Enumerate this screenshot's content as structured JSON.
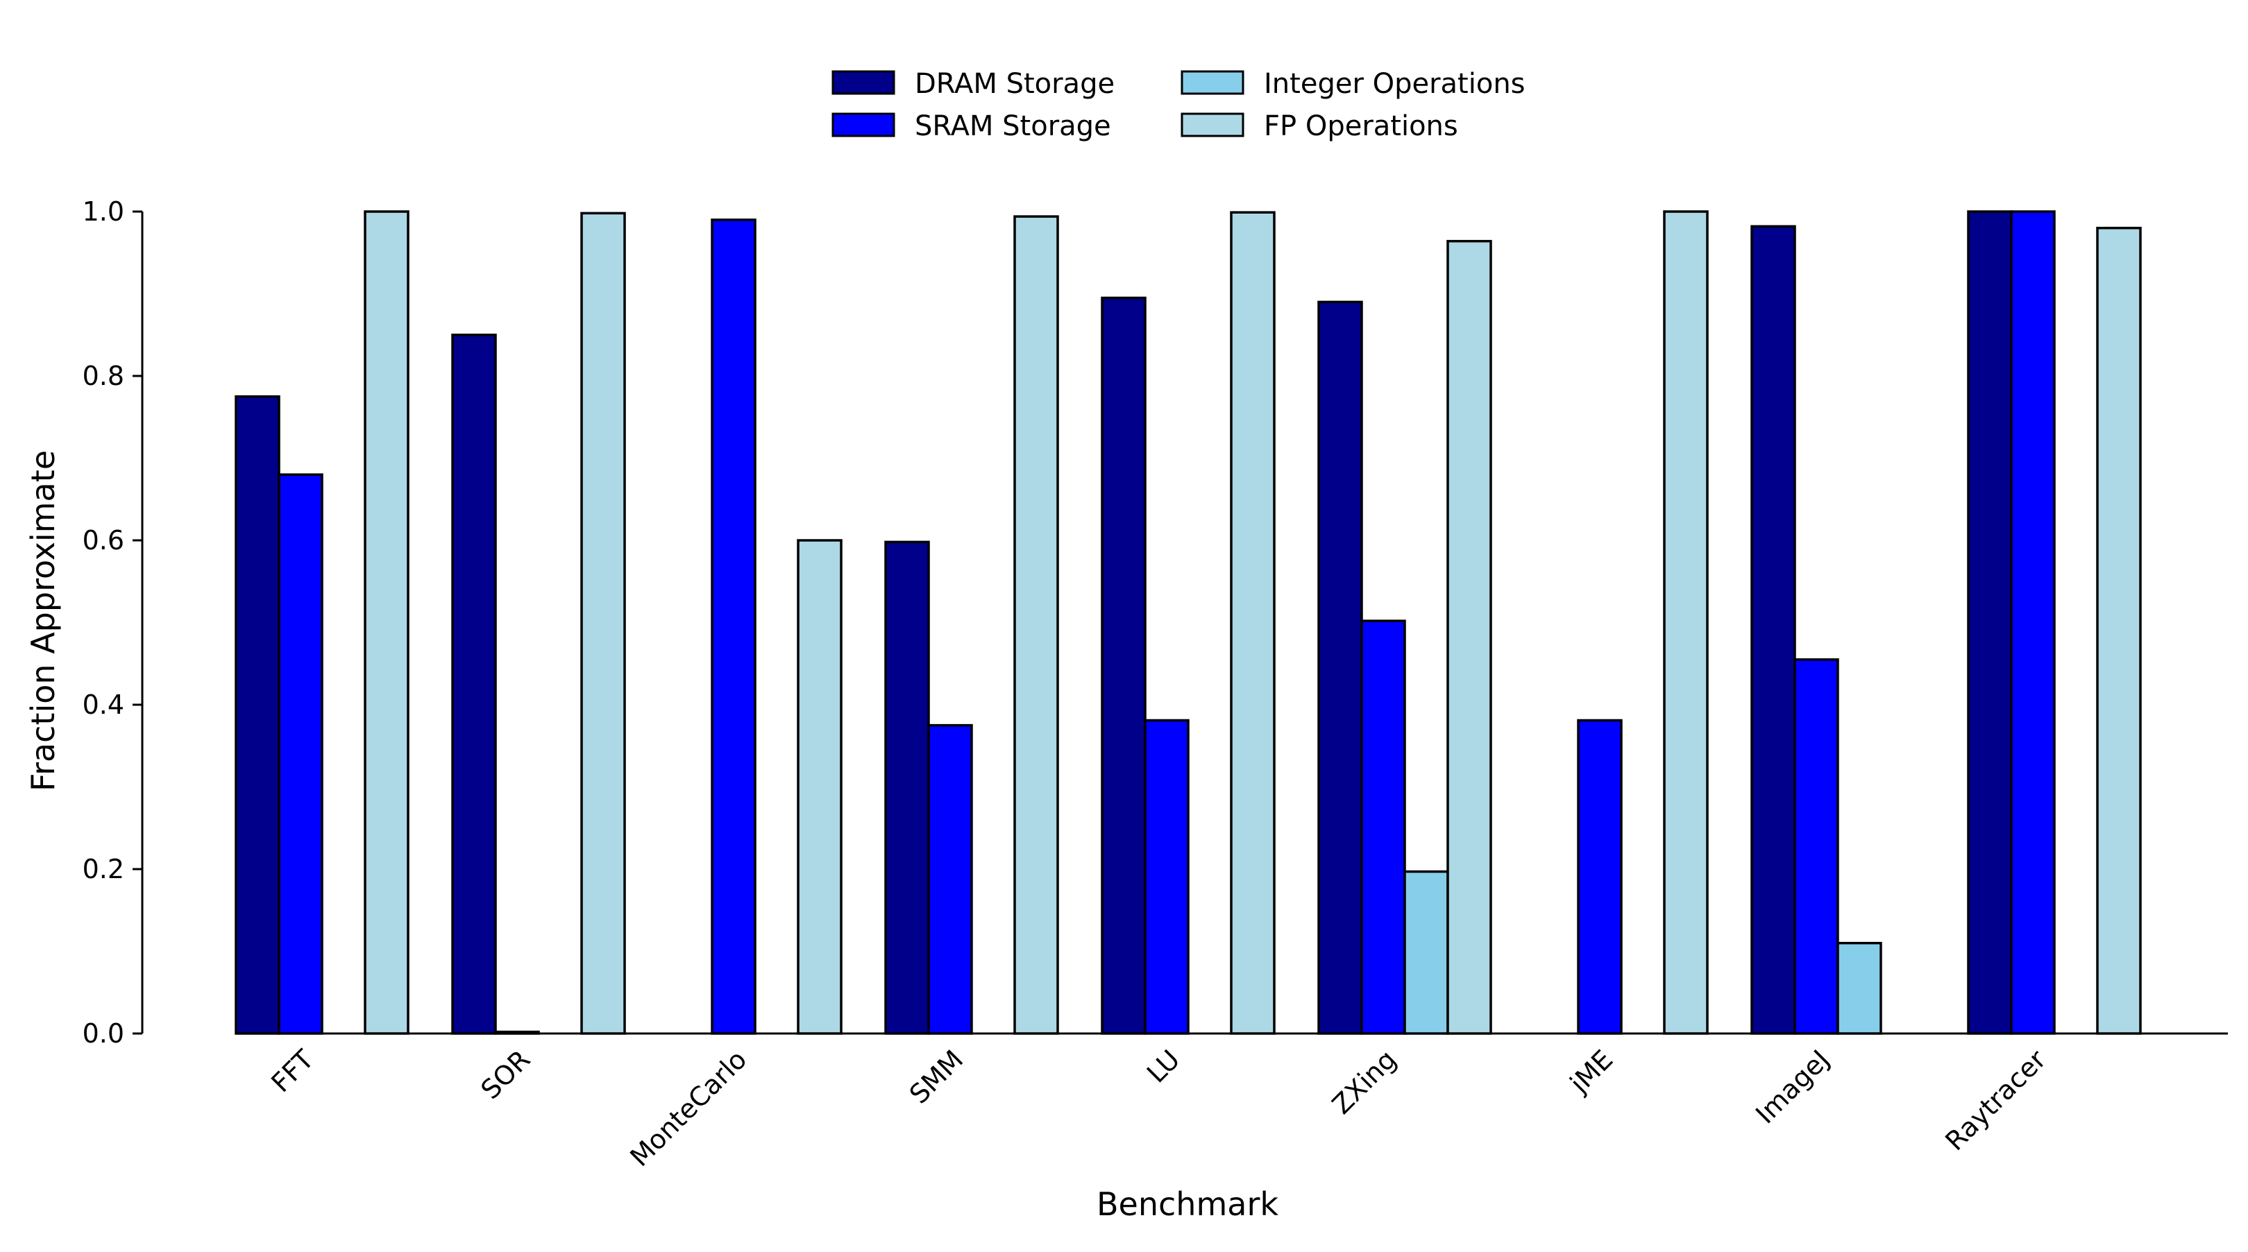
{
  "chart_data": {
    "type": "bar",
    "title": "",
    "xlabel": "Benchmark",
    "ylabel": "Fraction Approximate",
    "ylim": [
      0,
      1.0
    ],
    "yticks": [
      "0.0",
      "0.2",
      "0.4",
      "0.6",
      "0.8",
      "1.0"
    ],
    "grid": false,
    "legend_position": "top-center",
    "categories": [
      "FFT",
      "SOR",
      "MonteCarlo",
      "SMM",
      "LU",
      "ZXing",
      "jME",
      "ImageJ",
      "Raytracer"
    ],
    "series": [
      {
        "name": "DRAM Storage",
        "color": "#00008b",
        "values": [
          0.775,
          0.85,
          0.0,
          0.598,
          0.895,
          0.89,
          0.0,
          0.982,
          1.0
        ]
      },
      {
        "name": "SRAM Storage",
        "color": "#0000ff",
        "values": [
          0.68,
          0.002,
          0.99,
          0.375,
          0.381,
          0.502,
          0.381,
          0.455,
          1.0
        ]
      },
      {
        "name": "Integer Operations",
        "color": "#87ceeb",
        "values": [
          0.0,
          0.0,
          0.0,
          0.0,
          0.0,
          0.197,
          0.0,
          0.11,
          0.0
        ]
      },
      {
        "name": "FP Operations",
        "color": "#add8e6",
        "values": [
          1.0,
          0.998,
          0.6,
          0.994,
          0.999,
          0.964,
          1.0,
          0.0,
          0.98
        ]
      }
    ]
  }
}
